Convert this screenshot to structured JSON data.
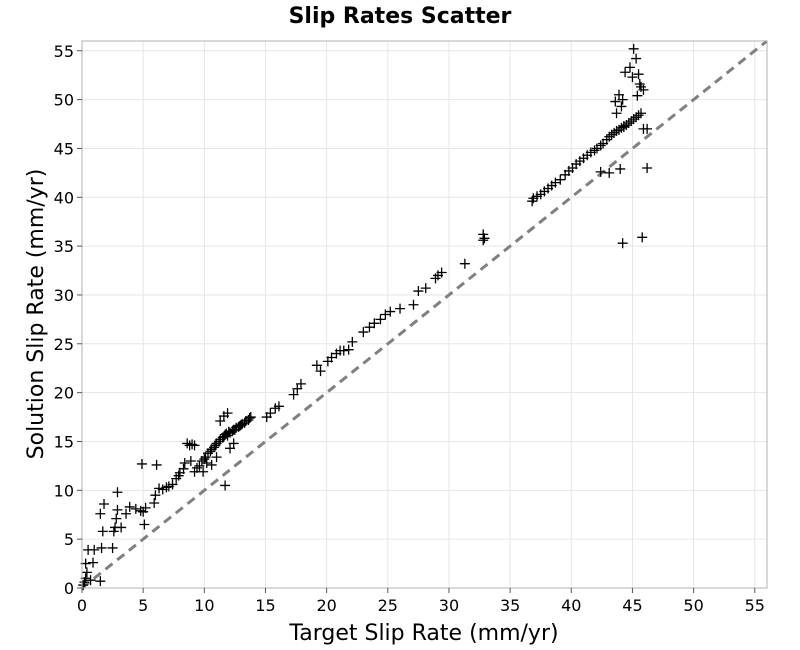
{
  "chart_data": {
    "type": "scatter",
    "title": "Slip Rates Scatter",
    "xlabel": "Target Slip Rate (mm/yr)",
    "ylabel": "Solution Slip Rate (mm/yr)",
    "xlim": [
      0,
      56
    ],
    "ylim": [
      0,
      56
    ],
    "xticks": [
      0,
      5,
      10,
      15,
      20,
      25,
      30,
      35,
      40,
      45,
      50,
      55
    ],
    "yticks": [
      0,
      5,
      10,
      15,
      20,
      25,
      30,
      35,
      40,
      45,
      50,
      55
    ],
    "grid": true,
    "marker": "plus",
    "marker_color": "#000000",
    "reference_line": {
      "style": "dashed",
      "color": "#808080",
      "x": [
        0,
        56
      ],
      "y": [
        0,
        56
      ]
    },
    "points": [
      [
        0.1,
        0.3
      ],
      [
        0.2,
        0.6
      ],
      [
        0.3,
        1.0
      ],
      [
        0.4,
        1.6
      ],
      [
        0.3,
        2.5
      ],
      [
        0.5,
        3.9
      ],
      [
        0.7,
        0.8
      ],
      [
        0.9,
        2.6
      ],
      [
        1.0,
        3.9
      ],
      [
        1.5,
        0.7
      ],
      [
        1.6,
        4.1
      ],
      [
        1.5,
        7.6
      ],
      [
        1.8,
        8.6
      ],
      [
        1.7,
        5.8
      ],
      [
        2.5,
        4.1
      ],
      [
        2.6,
        5.8
      ],
      [
        2.7,
        6.2
      ],
      [
        2.8,
        7.1
      ],
      [
        2.9,
        8.0
      ],
      [
        2.9,
        9.8
      ],
      [
        3.2,
        6.2
      ],
      [
        3.6,
        7.6
      ],
      [
        3.9,
        8.3
      ],
      [
        4.4,
        8.1
      ],
      [
        4.8,
        7.9
      ],
      [
        4.9,
        12.7
      ],
      [
        5.0,
        7.8
      ],
      [
        5.1,
        6.5
      ],
      [
        5.2,
        8.2
      ],
      [
        5.9,
        8.7
      ],
      [
        6.0,
        9.5
      ],
      [
        6.1,
        12.6
      ],
      [
        6.3,
        10.2
      ],
      [
        6.6,
        10.1
      ],
      [
        6.9,
        10.3
      ],
      [
        7.1,
        10.4
      ],
      [
        7.4,
        10.6
      ],
      [
        7.7,
        11.2
      ],
      [
        7.9,
        11.5
      ],
      [
        8.0,
        11.8
      ],
      [
        8.3,
        12.2
      ],
      [
        8.4,
        12.8
      ],
      [
        8.6,
        14.8
      ],
      [
        8.8,
        14.6
      ],
      [
        9.0,
        14.7
      ],
      [
        9.2,
        14.6
      ],
      [
        8.9,
        13.0
      ],
      [
        9.2,
        11.9
      ],
      [
        9.4,
        12.3
      ],
      [
        9.6,
        12.5
      ],
      [
        9.8,
        13.0
      ],
      [
        10.0,
        13.2
      ],
      [
        10.1,
        13.4
      ],
      [
        10.3,
        13.8
      ],
      [
        10.5,
        14.0
      ],
      [
        10.6,
        14.2
      ],
      [
        10.8,
        14.4
      ],
      [
        10.9,
        14.6
      ],
      [
        11.0,
        14.8
      ],
      [
        11.2,
        15.0
      ],
      [
        11.3,
        15.2
      ],
      [
        11.5,
        15.4
      ],
      [
        11.6,
        15.5
      ],
      [
        11.7,
        15.7
      ],
      [
        11.8,
        15.8
      ],
      [
        11.9,
        15.6
      ],
      [
        12.0,
        16.0
      ],
      [
        12.1,
        15.9
      ],
      [
        12.3,
        16.1
      ],
      [
        12.4,
        16.2
      ],
      [
        12.5,
        16.2
      ],
      [
        12.6,
        16.4
      ],
      [
        12.8,
        16.5
      ],
      [
        12.9,
        16.6
      ],
      [
        13.0,
        16.7
      ],
      [
        13.1,
        16.8
      ],
      [
        13.3,
        16.9
      ],
      [
        13.4,
        17.1
      ],
      [
        13.6,
        17.2
      ],
      [
        13.7,
        17.4
      ],
      [
        13.8,
        17.5
      ],
      [
        11.3,
        17.1
      ],
      [
        11.6,
        17.6
      ],
      [
        11.9,
        17.9
      ],
      [
        12.1,
        14.3
      ],
      [
        12.4,
        14.8
      ],
      [
        11.7,
        10.5
      ],
      [
        11.0,
        13.4
      ],
      [
        10.6,
        12.6
      ],
      [
        10.2,
        12.8
      ],
      [
        9.9,
        11.9
      ],
      [
        15.1,
        17.5
      ],
      [
        15.4,
        17.9
      ],
      [
        15.8,
        18.4
      ],
      [
        16.1,
        18.6
      ],
      [
        17.3,
        19.8
      ],
      [
        17.6,
        20.4
      ],
      [
        17.9,
        20.9
      ],
      [
        19.2,
        22.8
      ],
      [
        19.5,
        22.2
      ],
      [
        20.1,
        23.2
      ],
      [
        20.4,
        23.6
      ],
      [
        20.8,
        24.0
      ],
      [
        21.1,
        24.3
      ],
      [
        21.4,
        24.3
      ],
      [
        21.8,
        24.4
      ],
      [
        22.1,
        25.2
      ],
      [
        23.0,
        26.2
      ],
      [
        23.5,
        26.7
      ],
      [
        23.9,
        27.1
      ],
      [
        24.4,
        27.5
      ],
      [
        24.8,
        28.0
      ],
      [
        25.2,
        28.3
      ],
      [
        26.0,
        28.6
      ],
      [
        27.1,
        29.0
      ],
      [
        27.5,
        30.4
      ],
      [
        28.1,
        30.7
      ],
      [
        28.9,
        31.7
      ],
      [
        29.1,
        32.0
      ],
      [
        29.4,
        32.3
      ],
      [
        31.3,
        33.2
      ],
      [
        32.8,
        35.6
      ],
      [
        32.9,
        35.8
      ],
      [
        32.8,
        36.2
      ],
      [
        36.8,
        39.6
      ],
      [
        36.9,
        39.9
      ],
      [
        37.2,
        40.1
      ],
      [
        37.5,
        40.3
      ],
      [
        37.8,
        40.6
      ],
      [
        38.1,
        40.9
      ],
      [
        38.4,
        41.2
      ],
      [
        38.7,
        41.5
      ],
      [
        39.1,
        41.8
      ],
      [
        39.5,
        42.3
      ],
      [
        39.8,
        42.7
      ],
      [
        40.1,
        43.0
      ],
      [
        40.4,
        43.4
      ],
      [
        40.7,
        43.7
      ],
      [
        41.0,
        44.0
      ],
      [
        41.3,
        44.3
      ],
      [
        41.6,
        44.6
      ],
      [
        41.9,
        44.8
      ],
      [
        42.1,
        45.0
      ],
      [
        42.4,
        45.3
      ],
      [
        42.6,
        45.5
      ],
      [
        42.9,
        45.9
      ],
      [
        43.1,
        46.2
      ],
      [
        43.3,
        46.4
      ],
      [
        43.5,
        46.6
      ],
      [
        43.7,
        46.8
      ],
      [
        43.9,
        46.9
      ],
      [
        44.1,
        47.1
      ],
      [
        44.3,
        47.3
      ],
      [
        44.5,
        47.4
      ],
      [
        44.7,
        47.6
      ],
      [
        44.9,
        47.8
      ],
      [
        45.1,
        48.0
      ],
      [
        45.3,
        48.2
      ],
      [
        45.5,
        48.4
      ],
      [
        45.7,
        48.6
      ],
      [
        42.4,
        42.6
      ],
      [
        43.1,
        42.5
      ],
      [
        44.0,
        42.9
      ],
      [
        46.2,
        43.0
      ],
      [
        44.2,
        35.3
      ],
      [
        45.8,
        35.9
      ],
      [
        45.9,
        47.0
      ],
      [
        46.2,
        47.0
      ],
      [
        44.3,
        47.2
      ],
      [
        43.7,
        48.6
      ],
      [
        44.1,
        49.3
      ],
      [
        43.9,
        50.5
      ],
      [
        44.4,
        52.8
      ],
      [
        44.8,
        53.3
      ],
      [
        45.0,
        52.3
      ],
      [
        45.3,
        54.2
      ],
      [
        45.5,
        52.6
      ],
      [
        45.6,
        51.6
      ],
      [
        45.4,
        50.4
      ],
      [
        45.7,
        51.3
      ],
      [
        45.9,
        51.0
      ],
      [
        45.1,
        55.2
      ],
      [
        44.2,
        50.0
      ],
      [
        43.6,
        49.8
      ]
    ]
  }
}
